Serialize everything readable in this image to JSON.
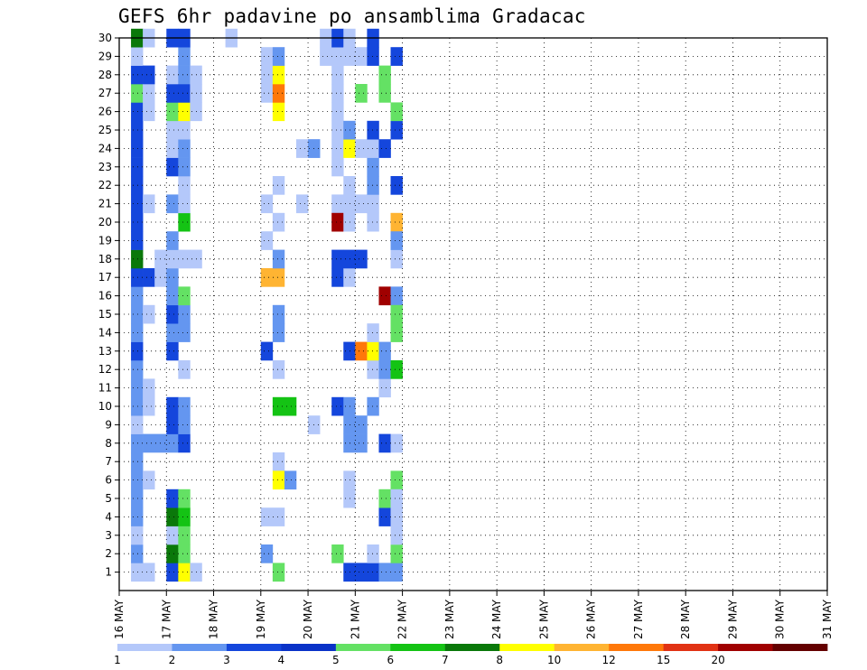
{
  "chart_data": {
    "type": "heatmap",
    "title": "GEFS 6hr padavine po ansamblima Gradacac",
    "x_tick_labels": [
      "16 MAY",
      "17 MAY",
      "18 MAY",
      "19 MAY",
      "20 MAY",
      "21 MAY",
      "22 MAY",
      "23 MAY",
      "24 MAY",
      "25 MAY",
      "26 MAY",
      "27 MAY",
      "28 MAY",
      "29 MAY",
      "30 MAY",
      "31 MAY"
    ],
    "y_tick_labels": [
      "1",
      "2",
      "3",
      "4",
      "5",
      "6",
      "7",
      "8",
      "9",
      "10",
      "11",
      "12",
      "13",
      "14",
      "15",
      "16",
      "17",
      "18",
      "19",
      "20",
      "21",
      "22",
      "23",
      "24",
      "25",
      "26",
      "27",
      "28",
      "29",
      "30"
    ],
    "x_range": [
      "16 MAY",
      "31 MAY"
    ],
    "y_range": [
      0,
      30
    ],
    "time_step_hours": 6,
    "grid": "dotted",
    "colorbar": {
      "position": "bottom",
      "levels": [
        1,
        2,
        3,
        4,
        5,
        6,
        7,
        8,
        10,
        12,
        15,
        20
      ],
      "level_labels": [
        "1",
        "2",
        "3",
        "4",
        "5",
        "6",
        "7",
        "8",
        "10",
        "12",
        "15",
        "20"
      ],
      "colors": [
        "#b4c8fa",
        "#6496f0",
        "#1446dc",
        "#0a32c8",
        "#64e164",
        "#14c314",
        "#0a780a",
        "#ffff00",
        "#ffb432",
        "#ff780a",
        "#e13214",
        "#a00000",
        "#640000"
      ]
    },
    "cells": [
      [
        1,
        1,
        2,
        1
      ],
      [
        1,
        2,
        1,
        2
      ],
      [
        1,
        1,
        1,
        3
      ],
      [
        1,
        2,
        1,
        4
      ],
      [
        1,
        2,
        1,
        5
      ],
      [
        1,
        2,
        1,
        6
      ],
      [
        1,
        2,
        1,
        7
      ],
      [
        1,
        2,
        1,
        8
      ],
      [
        1,
        1,
        1,
        9
      ],
      [
        1,
        2,
        1,
        10
      ],
      [
        1,
        2,
        1,
        11
      ],
      [
        1,
        2,
        1,
        12
      ],
      [
        1,
        3,
        1,
        13
      ],
      [
        1,
        2,
        1,
        14
      ],
      [
        1,
        2,
        1,
        15
      ],
      [
        1,
        2,
        1,
        16
      ],
      [
        1,
        3,
        1,
        17
      ],
      [
        1,
        7,
        1,
        18
      ],
      [
        1,
        3,
        1,
        19
      ],
      [
        1,
        3,
        1,
        20
      ],
      [
        1,
        3,
        1,
        21
      ],
      [
        1,
        3,
        1,
        22
      ],
      [
        1,
        3,
        1,
        23
      ],
      [
        1,
        3,
        1,
        24
      ],
      [
        1,
        3,
        1,
        25
      ],
      [
        1,
        3,
        1,
        26
      ],
      [
        1,
        5,
        1,
        27
      ],
      [
        1,
        3,
        1,
        28
      ],
      [
        1,
        1,
        1,
        29
      ],
      [
        1,
        7,
        1,
        30
      ],
      [
        2,
        1,
        1,
        6
      ],
      [
        2,
        2,
        2,
        8
      ],
      [
        2,
        1,
        1,
        10
      ],
      [
        2,
        1,
        1,
        11
      ],
      [
        2,
        1,
        1,
        15
      ],
      [
        2,
        3,
        1,
        17
      ],
      [
        2,
        1,
        1,
        21
      ],
      [
        2,
        1,
        1,
        26
      ],
      [
        2,
        1,
        1,
        27
      ],
      [
        2,
        3,
        1,
        28
      ],
      [
        2,
        1,
        1,
        30
      ],
      [
        3,
        1,
        1,
        17
      ],
      [
        3,
        1,
        1,
        18
      ],
      [
        4,
        3,
        1,
        1
      ],
      [
        4,
        7,
        1,
        2
      ],
      [
        4,
        1,
        1,
        3
      ],
      [
        4,
        7,
        1,
        4
      ],
      [
        4,
        3,
        1,
        5
      ],
      [
        4,
        2,
        1,
        8
      ],
      [
        4,
        3,
        1,
        9
      ],
      [
        4,
        3,
        1,
        10
      ],
      [
        4,
        3,
        1,
        13
      ],
      [
        4,
        2,
        1,
        14
      ],
      [
        4,
        3,
        1,
        15
      ],
      [
        4,
        2,
        1,
        16
      ],
      [
        4,
        2,
        1,
        17
      ],
      [
        4,
        1,
        1,
        18
      ],
      [
        4,
        2,
        1,
        19
      ],
      [
        4,
        2,
        1,
        21
      ],
      [
        4,
        3,
        1,
        23
      ],
      [
        4,
        1,
        1,
        24
      ],
      [
        4,
        1,
        1,
        25
      ],
      [
        4,
        5,
        1,
        26
      ],
      [
        4,
        3,
        1,
        27
      ],
      [
        4,
        1,
        1,
        28
      ],
      [
        4,
        3,
        1,
        30
      ],
      [
        5,
        8,
        1,
        1
      ],
      [
        5,
        5,
        1,
        2
      ],
      [
        5,
        5,
        1,
        3
      ],
      [
        5,
        6,
        1,
        4
      ],
      [
        5,
        5,
        1,
        5
      ],
      [
        5,
        3,
        1,
        8
      ],
      [
        5,
        2,
        1,
        9
      ],
      [
        5,
        2,
        1,
        10
      ],
      [
        5,
        1,
        1,
        12
      ],
      [
        5,
        2,
        1,
        14
      ],
      [
        5,
        2,
        1,
        15
      ],
      [
        5,
        5,
        1,
        16
      ],
      [
        5,
        1,
        1,
        18
      ],
      [
        5,
        6,
        1,
        20
      ],
      [
        5,
        1,
        1,
        21
      ],
      [
        5,
        1,
        1,
        22
      ],
      [
        5,
        2,
        1,
        23
      ],
      [
        5,
        2,
        1,
        24
      ],
      [
        5,
        1,
        1,
        25
      ],
      [
        5,
        8,
        1,
        26
      ],
      [
        5,
        3,
        1,
        27
      ],
      [
        5,
        2,
        1,
        28
      ],
      [
        5,
        2,
        1,
        29
      ],
      [
        5,
        3,
        1,
        30
      ],
      [
        6,
        1,
        1,
        1
      ],
      [
        6,
        1,
        1,
        18
      ],
      [
        6,
        1,
        1,
        26
      ],
      [
        6,
        1,
        1,
        27
      ],
      [
        6,
        1,
        1,
        28
      ],
      [
        9,
        1,
        1,
        30
      ],
      [
        12,
        2,
        1,
        2
      ],
      [
        12,
        1,
        1,
        4
      ],
      [
        12,
        3,
        1,
        13
      ],
      [
        12,
        9,
        1,
        17
      ],
      [
        12,
        1,
        1,
        19
      ],
      [
        12,
        1,
        1,
        21
      ],
      [
        12,
        1,
        1,
        27
      ],
      [
        12,
        1,
        1,
        28
      ],
      [
        12,
        1,
        1,
        29
      ],
      [
        13,
        5,
        1,
        1
      ],
      [
        13,
        1,
        1,
        4
      ],
      [
        13,
        6,
        1,
        10
      ],
      [
        13,
        1,
        1,
        7
      ],
      [
        13,
        8,
        1,
        6
      ],
      [
        13,
        1,
        1,
        12
      ],
      [
        13,
        2,
        1,
        14
      ],
      [
        13,
        2,
        1,
        15
      ],
      [
        13,
        9,
        1,
        17
      ],
      [
        13,
        2,
        1,
        18
      ],
      [
        13,
        1,
        1,
        20
      ],
      [
        13,
        1,
        1,
        22
      ],
      [
        13,
        8,
        1,
        26
      ],
      [
        13,
        10,
        1,
        27
      ],
      [
        13,
        8,
        1,
        28
      ],
      [
        13,
        2,
        1,
        29
      ],
      [
        14,
        6,
        1,
        10
      ],
      [
        14,
        2,
        1,
        6
      ],
      [
        15,
        1,
        1,
        21
      ],
      [
        15,
        1,
        1,
        24
      ],
      [
        16,
        1,
        1,
        9
      ],
      [
        16,
        1,
        1,
        24
      ],
      [
        16,
        2,
        1,
        24
      ],
      [
        17,
        1,
        1,
        29
      ],
      [
        17,
        1,
        1,
        30
      ],
      [
        18,
        5,
        1,
        2
      ],
      [
        18,
        3,
        1,
        10
      ],
      [
        18,
        3,
        1,
        17
      ],
      [
        18,
        3,
        1,
        18
      ],
      [
        18,
        1,
        1,
        21
      ],
      [
        18,
        12,
        1,
        20
      ],
      [
        18,
        1,
        1,
        23
      ],
      [
        18,
        1,
        1,
        24
      ],
      [
        18,
        1,
        1,
        25
      ],
      [
        18,
        1,
        1,
        26
      ],
      [
        18,
        1,
        1,
        27
      ],
      [
        18,
        1,
        1,
        28
      ],
      [
        18,
        1,
        1,
        29
      ],
      [
        18,
        3,
        1,
        30
      ],
      [
        19,
        3,
        1,
        1
      ],
      [
        19,
        1,
        1,
        5
      ],
      [
        19,
        1,
        1,
        6
      ],
      [
        19,
        2,
        1,
        8
      ],
      [
        19,
        2,
        1,
        9
      ],
      [
        19,
        2,
        1,
        10
      ],
      [
        19,
        3,
        1,
        13
      ],
      [
        19,
        1,
        1,
        17
      ],
      [
        19,
        3,
        1,
        18
      ],
      [
        19,
        1,
        1,
        20
      ],
      [
        19,
        1,
        1,
        21
      ],
      [
        19,
        1,
        1,
        22
      ],
      [
        19,
        8,
        1,
        24
      ],
      [
        19,
        2,
        1,
        25
      ],
      [
        19,
        1,
        1,
        29
      ],
      [
        19,
        1,
        1,
        30
      ],
      [
        20,
        3,
        1,
        1
      ],
      [
        20,
        2,
        1,
        8
      ],
      [
        20,
        2,
        1,
        9
      ],
      [
        20,
        10,
        1,
        13
      ],
      [
        20,
        3,
        1,
        18
      ],
      [
        20,
        1,
        1,
        21
      ],
      [
        20,
        1,
        1,
        24
      ],
      [
        20,
        5,
        1,
        27
      ],
      [
        20,
        1,
        1,
        29
      ],
      [
        21,
        3,
        1,
        1
      ],
      [
        21,
        1,
        1,
        2
      ],
      [
        21,
        2,
        1,
        10
      ],
      [
        21,
        1,
        1,
        12
      ],
      [
        21,
        8,
        1,
        13
      ],
      [
        21,
        1,
        1,
        14
      ],
      [
        21,
        1,
        1,
        20
      ],
      [
        21,
        1,
        1,
        21
      ],
      [
        21,
        2,
        1,
        22
      ],
      [
        21,
        2,
        1,
        23
      ],
      [
        21,
        1,
        1,
        24
      ],
      [
        21,
        3,
        1,
        25
      ],
      [
        21,
        3,
        1,
        29
      ],
      [
        21,
        3,
        1,
        30
      ],
      [
        22,
        2,
        1,
        1
      ],
      [
        22,
        3,
        1,
        4
      ],
      [
        22,
        5,
        1,
        5
      ],
      [
        22,
        3,
        1,
        8
      ],
      [
        22,
        1,
        1,
        11
      ],
      [
        22,
        2,
        1,
        12
      ],
      [
        22,
        2,
        1,
        13
      ],
      [
        22,
        12,
        1,
        16
      ],
      [
        22,
        3,
        1,
        24
      ],
      [
        22,
        5,
        1,
        27
      ],
      [
        22,
        5,
        1,
        28
      ],
      [
        23,
        2,
        1,
        1
      ],
      [
        23,
        5,
        1,
        2
      ],
      [
        23,
        1,
        1,
        3
      ],
      [
        23,
        1,
        1,
        8
      ],
      [
        23,
        6,
        1,
        12
      ],
      [
        23,
        9,
        1,
        20
      ],
      [
        23,
        5,
        1,
        6
      ],
      [
        23,
        1,
        1,
        4
      ],
      [
        23,
        3,
        1,
        29
      ],
      [
        23,
        2,
        1,
        16
      ],
      [
        23,
        5,
        1,
        15
      ],
      [
        23,
        5,
        1,
        14
      ],
      [
        23,
        1,
        1,
        18
      ],
      [
        23,
        2,
        1,
        19
      ],
      [
        23,
        3,
        1,
        22
      ],
      [
        23,
        1,
        1,
        5
      ],
      [
        23,
        3,
        1,
        25
      ],
      [
        23,
        5,
        1,
        26
      ]
    ]
  }
}
